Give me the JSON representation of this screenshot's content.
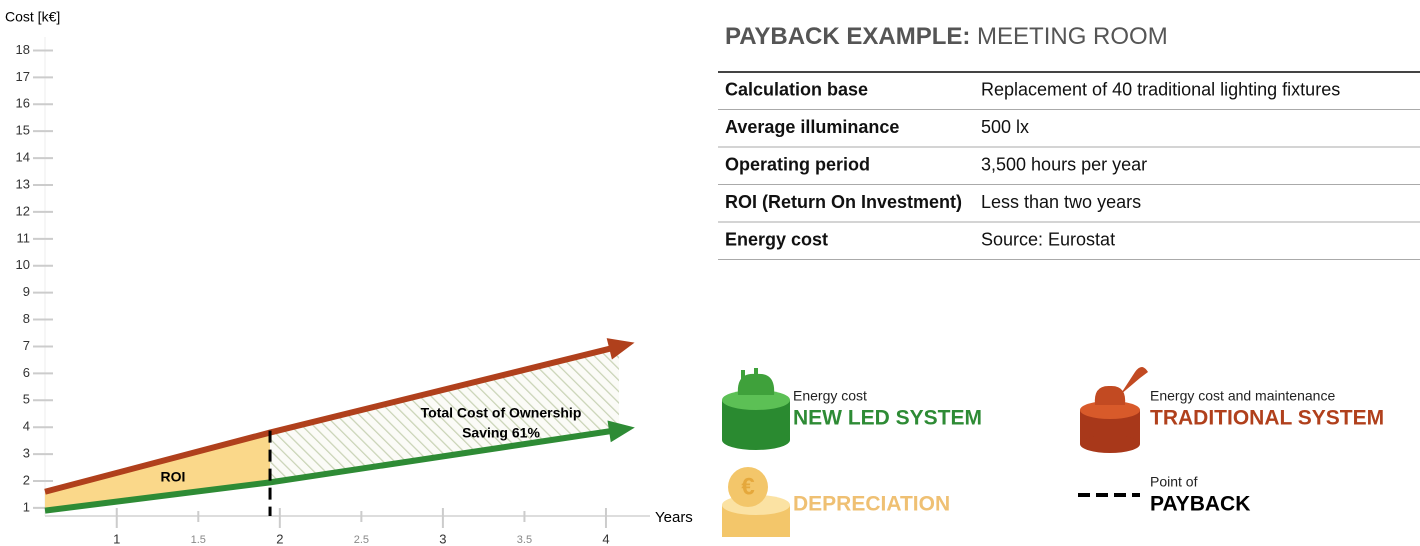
{
  "chart_data": {
    "type": "line",
    "y_label": "Cost [k€]",
    "x_label": "Years",
    "x": [
      0.56,
      1.94,
      4.08
    ],
    "series": [
      {
        "name": "TRADITIONAL SYSTEM",
        "caption": "Energy cost and maintenance",
        "color": "#b0401c",
        "values": [
          1.6,
          3.8,
          7.0
        ]
      },
      {
        "name": "NEW LED SYSTEM",
        "caption": "Energy cost",
        "color": "#2e8b35",
        "values": [
          0.9,
          1.95,
          3.9
        ]
      }
    ],
    "depreciation": {
      "name": "DEPRECIATION",
      "color": "#fad88a",
      "label_color": "#efc073"
    },
    "payback": {
      "x": 1.94,
      "caption": "Point of",
      "name": "PAYBACK"
    },
    "annotations": [
      "ROI",
      "Total Cost of Ownership",
      "Saving 61%"
    ],
    "xlim": [
      0.56,
      4.27
    ],
    "ylim": [
      0.7,
      18.5
    ],
    "xticks": [
      1,
      1.5,
      2,
      2.5,
      3,
      3.5,
      4
    ],
    "yticks": [
      1,
      2,
      3,
      4,
      5,
      6,
      7,
      8,
      9,
      10,
      11,
      12,
      13,
      14,
      15,
      16,
      17,
      18
    ]
  },
  "table": {
    "title_bold": "PAYBACK EXAMPLE:",
    "title_rest": "MEETING ROOM",
    "rows": [
      [
        "Calculation base",
        "Replacement of 40 traditional lighting fixtures"
      ],
      [
        "Average illuminance",
        "500 lx"
      ],
      [
        "Operating period",
        "3,500 hours per year"
      ],
      [
        "ROI (Return On Investment)",
        "Less than two years"
      ],
      [
        "Energy cost",
        "Source: Eurostat"
      ]
    ]
  }
}
